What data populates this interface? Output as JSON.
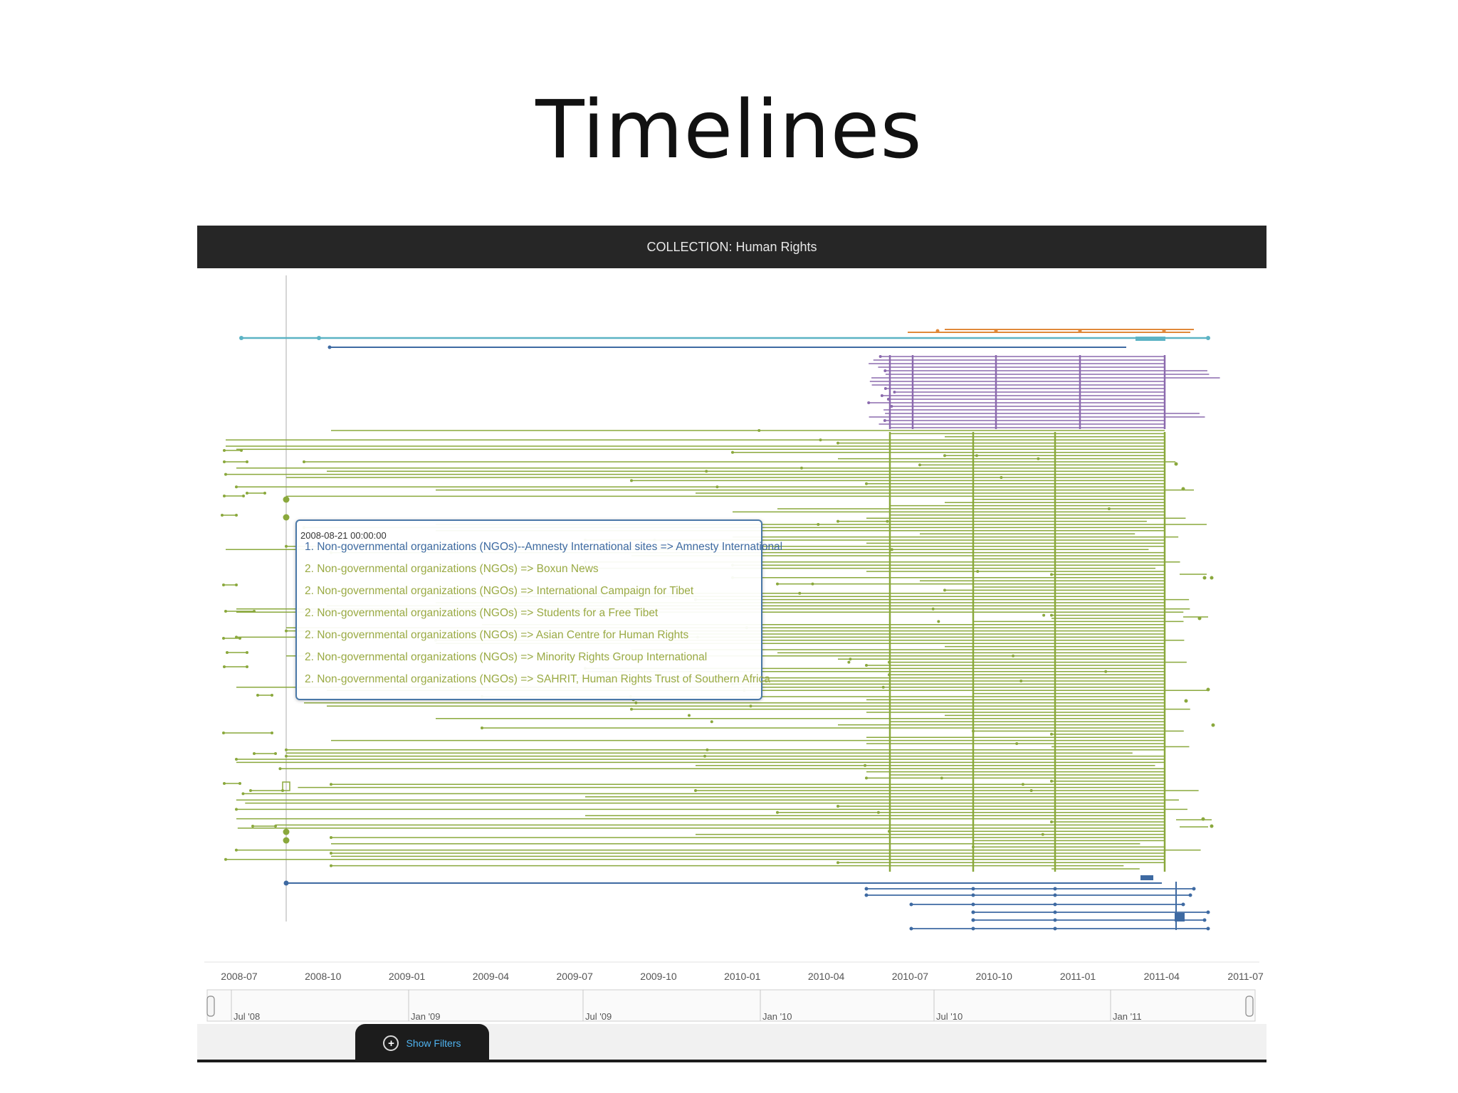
{
  "slide": {
    "title": "Timelines"
  },
  "app": {
    "collection_label": "COLLECTION: Human Rights"
  },
  "timeline": {
    "x_axis_ticks": [
      "2008-07",
      "2008-10",
      "2009-01",
      "2009-04",
      "2009-07",
      "2009-10",
      "2010-01",
      "2010-04",
      "2010-07",
      "2010-10",
      "2011-01",
      "2011-04",
      "2011-07"
    ],
    "overview_ticks": [
      "Jul '08",
      "Jan '09",
      "Jul '09",
      "Jan '10",
      "Jul '10",
      "Jan '11"
    ],
    "scrollbar_grip": "III",
    "colors": {
      "green": "#8aa83c",
      "purple": "#8b6aae",
      "blue": "#3e6aa2",
      "orange": "#e0893a",
      "teal": "#5cb3c4",
      "cursor": "#bbbbbb"
    }
  },
  "tooltip": {
    "date": "2008-08-21 00:00:00",
    "items": [
      "1. Non-governmental organizations (NGOs)--Amnesty International sites => Amnesty International",
      "2. Non-governmental organizations (NGOs) => Boxun News",
      "2. Non-governmental organizations (NGOs) => International Campaign for Tibet",
      "2. Non-governmental organizations (NGOs) => Students for a Free Tibet",
      "2. Non-governmental organizations (NGOs) => Asian Centre for Human Rights",
      "2. Non-governmental organizations (NGOs) => Minority Rights Group International",
      "2. Non-governmental organizations (NGOs) => SAHRIT, Human Rights Trust of Southern Africa"
    ]
  },
  "filters": {
    "toggle_label": "Show Filters"
  }
}
